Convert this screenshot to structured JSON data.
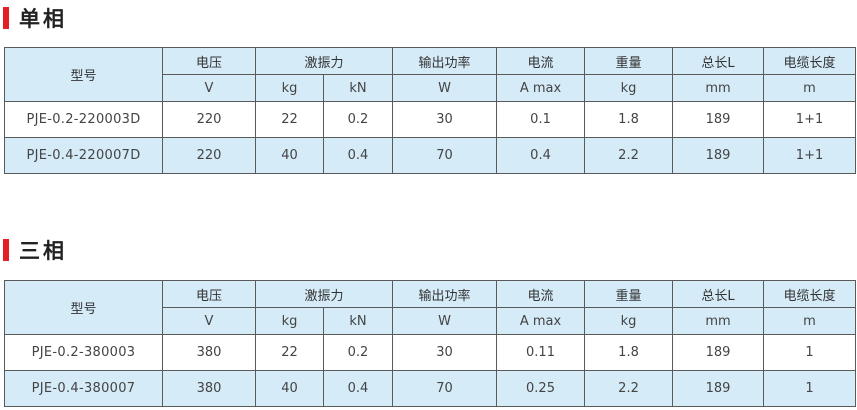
{
  "sections": [
    {
      "title": "单相",
      "headers": {
        "model": "型号",
        "voltage": "电压",
        "force": "激振力",
        "power": "输出功率",
        "current": "电流",
        "weight": "重量",
        "length": "总长L",
        "cable": "电缆长度"
      },
      "units": [
        "V",
        "kg",
        "kN",
        "W",
        "A max",
        "kg",
        "mm",
        "m"
      ],
      "rows": [
        [
          "PJE-0.2-220003D",
          "220",
          "22",
          "0.2",
          "30",
          "0.1",
          "1.8",
          "189",
          "1+1"
        ],
        [
          "PJE-0.4-220007D",
          "220",
          "40",
          "0.4",
          "70",
          "0.4",
          "2.2",
          "189",
          "1+1"
        ]
      ]
    },
    {
      "title": "三相",
      "headers": {
        "model": "型号",
        "voltage": "电压",
        "force": "激振力",
        "power": "输出功率",
        "current": "电流",
        "weight": "重量",
        "length": "总长L",
        "cable": "电缆长度"
      },
      "units": [
        "V",
        "kg",
        "kN",
        "W",
        "A max",
        "kg",
        "mm",
        "m"
      ],
      "rows": [
        [
          "PJE-0.2-380003",
          "380",
          "22",
          "0.2",
          "30",
          "0.11",
          "1.8",
          "189",
          "1"
        ],
        [
          "PJE-0.4-380007",
          "380",
          "40",
          "0.4",
          "70",
          "0.25",
          "2.2",
          "189",
          "1"
        ]
      ]
    }
  ],
  "colors": {
    "accent": "#e31e24",
    "header_bg": "#d5ebf8",
    "border": "#5a5a5a"
  }
}
